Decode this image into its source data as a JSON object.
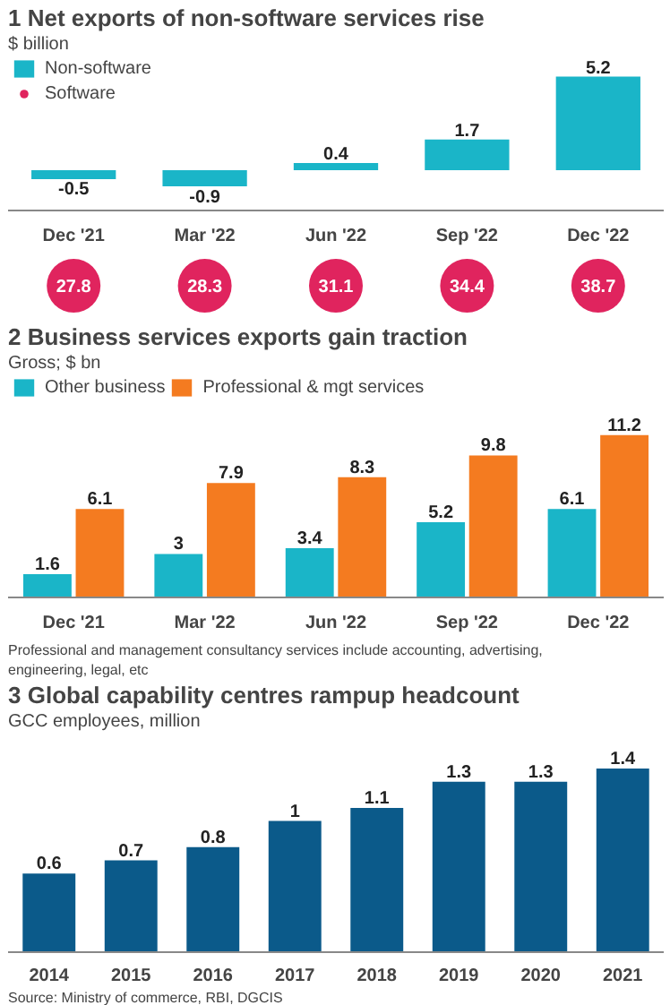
{
  "chart_data": [
    {
      "type": "bar",
      "title": "1 Net exports of non-software services rise",
      "subtitle": "$ billion",
      "categories": [
        "Dec '21",
        "Mar '22",
        "Jun '22",
        "Sep '22",
        "Dec '22"
      ],
      "series": [
        {
          "name": "Non-software",
          "color": "#1ab5c8",
          "values": [
            -0.5,
            -0.9,
            0.4,
            1.7,
            5.2
          ]
        }
      ],
      "tick_labels": "x",
      "data_labels": true,
      "legend": "top left",
      "grid": false
    },
    {
      "type": "other",
      "categories": [
        "Dec '21",
        "Mar '22",
        "Jun '22",
        "Sep '22",
        "Dec '22"
      ],
      "series": [
        {
          "name": "Software",
          "color": "#e0245e",
          "values": [
            27.8,
            28.3,
            31.1,
            34.4,
            38.7
          ]
        }
      ],
      "data_labels": true
    },
    {
      "type": "bar",
      "title": "2 Business services exports gain traction",
      "subtitle": "Gross; $ bn",
      "categories": [
        "Dec '21",
        "Mar '22",
        "Jun '22",
        "Sep '22",
        "Dec '22"
      ],
      "series": [
        {
          "name": "Other business",
          "color": "#1ab5c8",
          "values": [
            1.6,
            3,
            3.4,
            5.2,
            6.1
          ]
        },
        {
          "name": "Professional & mgt services",
          "color": "#f47b20",
          "values": [
            6.1,
            7.9,
            8.3,
            9.8,
            11.2
          ]
        }
      ],
      "tick_labels": "x",
      "data_labels": true,
      "legend": "top",
      "grid": false,
      "annotations": [
        "Professional and management consultancy services include accounting, advertising, engineering, legal, etc"
      ]
    },
    {
      "type": "bar",
      "title": "3 Global capability centres rampup headcount",
      "subtitle": "GCC employees, million",
      "categories": [
        "2014",
        "2015",
        "2016",
        "2017",
        "2018",
        "2019",
        "2020",
        "2021"
      ],
      "series": [
        {
          "color": "#0b5a8a",
          "values": [
            0.6,
            0.7,
            0.8,
            1,
            1.1,
            1.3,
            1.3,
            1.4
          ]
        }
      ],
      "tick_labels": "x",
      "data_labels": true,
      "grid": false,
      "annotations": [
        "Source: Ministry of commerce, RBI, DGCIS"
      ]
    }
  ]
}
